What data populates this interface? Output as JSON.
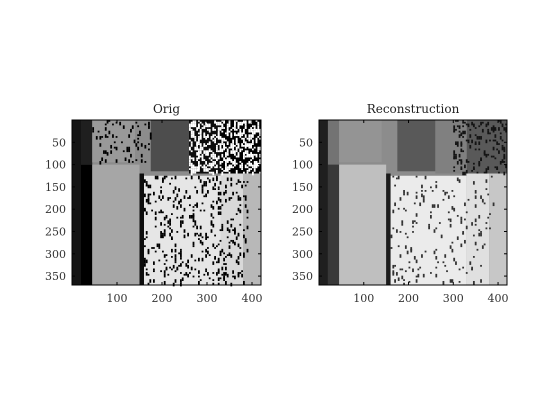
{
  "chart_data": [
    {
      "type": "heatmap",
      "title": "Orig",
      "colormap": "gray",
      "xlabel": "",
      "ylabel": "",
      "xlim": [
        0,
        420
      ],
      "ylim": [
        370,
        0
      ],
      "x_ticks": [
        100,
        200,
        300,
        400
      ],
      "y_ticks": [
        50,
        100,
        150,
        200,
        250,
        300,
        350
      ],
      "regions": [
        {
          "x": [
            0,
            420
          ],
          "y": [
            0,
            370
          ],
          "value": 0.55
        },
        {
          "x": [
            0,
            20
          ],
          "y": [
            0,
            370
          ],
          "value": 0.08
        },
        {
          "x": [
            20,
            45
          ],
          "y": [
            0,
            100
          ],
          "value": 0.12
        },
        {
          "x": [
            20,
            45
          ],
          "y": [
            100,
            370
          ],
          "value": 0.0
        },
        {
          "x": [
            45,
            140
          ],
          "y": [
            0,
            95
          ],
          "value": 0.6
        },
        {
          "x": [
            175,
            260
          ],
          "y": [
            0,
            115
          ],
          "value": 0.3
        },
        {
          "x": [
            260,
            330
          ],
          "y": [
            0,
            120
          ],
          "value": 0.05
        },
        {
          "x": [
            330,
            420
          ],
          "y": [
            0,
            120
          ],
          "value": 0.0
        },
        {
          "x": [
            45,
            150
          ],
          "y": [
            100,
            370
          ],
          "value": 0.65
        },
        {
          "x": [
            150,
            160
          ],
          "y": [
            120,
            370
          ],
          "value": 0.05
        },
        {
          "x": [
            160,
            330
          ],
          "y": [
            125,
            370
          ],
          "value": 0.9
        },
        {
          "x": [
            330,
            380
          ],
          "y": [
            120,
            370
          ],
          "value": 0.85
        },
        {
          "x": [
            380,
            420
          ],
          "y": [
            120,
            370
          ],
          "value": 0.72
        }
      ],
      "noise": {
        "seed": 7,
        "areas": [
          {
            "x": [
              45,
              175
            ],
            "y": [
              0,
              95
            ],
            "density": 0.08,
            "value": 0.0
          },
          {
            "x": [
              260,
              420
            ],
            "y": [
              0,
              120
            ],
            "density": 0.35,
            "value": 1.0
          },
          {
            "x": [
              160,
              390
            ],
            "y": [
              125,
              370
            ],
            "density": 0.12,
            "value": 0.0
          }
        ]
      }
    },
    {
      "type": "heatmap",
      "title": "Reconstruction",
      "colormap": "gray",
      "xlabel": "",
      "ylabel": "",
      "xlim": [
        0,
        420
      ],
      "ylim": [
        370,
        0
      ],
      "x_ticks": [
        100,
        200,
        300,
        400
      ],
      "y_ticks": [
        50,
        100,
        150,
        200,
        250,
        300,
        350
      ],
      "regions": [
        {
          "x": [
            0,
            420
          ],
          "y": [
            0,
            370
          ],
          "value": 0.55
        },
        {
          "x": [
            0,
            20
          ],
          "y": [
            0,
            370
          ],
          "value": 0.12
        },
        {
          "x": [
            20,
            45
          ],
          "y": [
            0,
            100
          ],
          "value": 0.45
        },
        {
          "x": [
            20,
            45
          ],
          "y": [
            100,
            370
          ],
          "value": 0.22
        },
        {
          "x": [
            45,
            140
          ],
          "y": [
            0,
            95
          ],
          "value": 0.58
        },
        {
          "x": [
            175,
            260
          ],
          "y": [
            0,
            115
          ],
          "value": 0.35
        },
        {
          "x": [
            260,
            330
          ],
          "y": [
            0,
            120
          ],
          "value": 0.5
        },
        {
          "x": [
            330,
            420
          ],
          "y": [
            0,
            120
          ],
          "value": 0.35
        },
        {
          "x": [
            45,
            150
          ],
          "y": [
            100,
            370
          ],
          "value": 0.75
        },
        {
          "x": [
            150,
            160
          ],
          "y": [
            120,
            370
          ],
          "value": 0.1
        },
        {
          "x": [
            160,
            330
          ],
          "y": [
            125,
            370
          ],
          "value": 0.92
        },
        {
          "x": [
            330,
            380
          ],
          "y": [
            120,
            370
          ],
          "value": 0.88
        },
        {
          "x": [
            380,
            420
          ],
          "y": [
            120,
            370
          ],
          "value": 0.78
        }
      ],
      "noise": {
        "seed": 11,
        "areas": [
          {
            "x": [
              300,
              420
            ],
            "y": [
              0,
              120
            ],
            "density": 0.18,
            "value": 0.08
          },
          {
            "x": [
              160,
              390
            ],
            "y": [
              125,
              370
            ],
            "density": 0.05,
            "value": 0.2
          }
        ]
      }
    }
  ]
}
